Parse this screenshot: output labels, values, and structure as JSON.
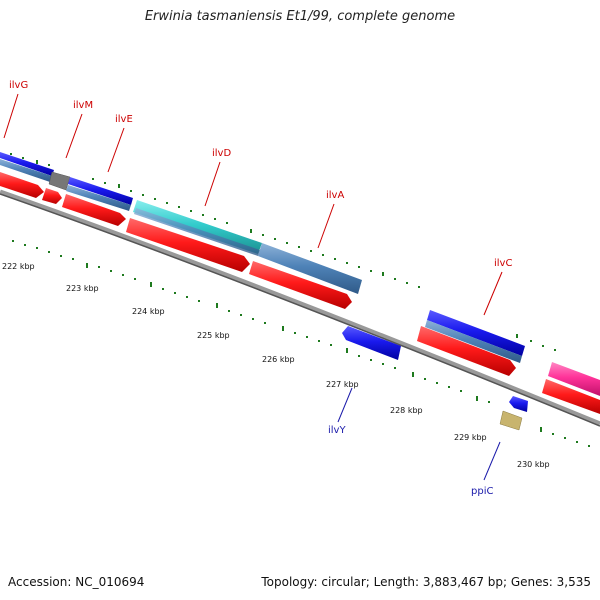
{
  "title": "Erwinia tasmaniensis Et1/99, complete genome",
  "accession": "Accession: NC_010694",
  "summary": "Topology: circular; Length: 3,883,467 bp; Genes: 3,535",
  "gene_labels": [
    {
      "id": "ilvG",
      "text": "ilvG",
      "color": "#cc0000"
    },
    {
      "id": "ilvM",
      "text": "ilvM",
      "color": "#cc0000"
    },
    {
      "id": "ilvE",
      "text": "ilvE",
      "color": "#cc0000"
    },
    {
      "id": "ilvD",
      "text": "ilvD",
      "color": "#cc0000"
    },
    {
      "id": "ilvA",
      "text": "ilvA",
      "color": "#cc0000"
    },
    {
      "id": "ilvC",
      "text": "ilvC",
      "color": "#cc0000"
    },
    {
      "id": "ilvY",
      "text": "ilvY",
      "color": "#1a1aaa"
    },
    {
      "id": "ppiC",
      "text": "ppiC",
      "color": "#1a1aaa"
    }
  ],
  "kbp_labels": [
    "222 kbp",
    "223 kbp",
    "224 kbp",
    "225 kbp",
    "226 kbp",
    "227 kbp",
    "228 kbp",
    "229 kbp",
    "230 kbp"
  ],
  "colors": {
    "red_gene": "#ff1a1a",
    "blue_gene": "#1a1aee",
    "steel_gene": "#4f83b8",
    "cyan_gene": "#33cccc",
    "gray_gene": "#777777",
    "pink_gene": "#ff3399",
    "tan_gene": "#c8b46e",
    "backbone": "#888888",
    "ticks": "#1e7a1e"
  }
}
